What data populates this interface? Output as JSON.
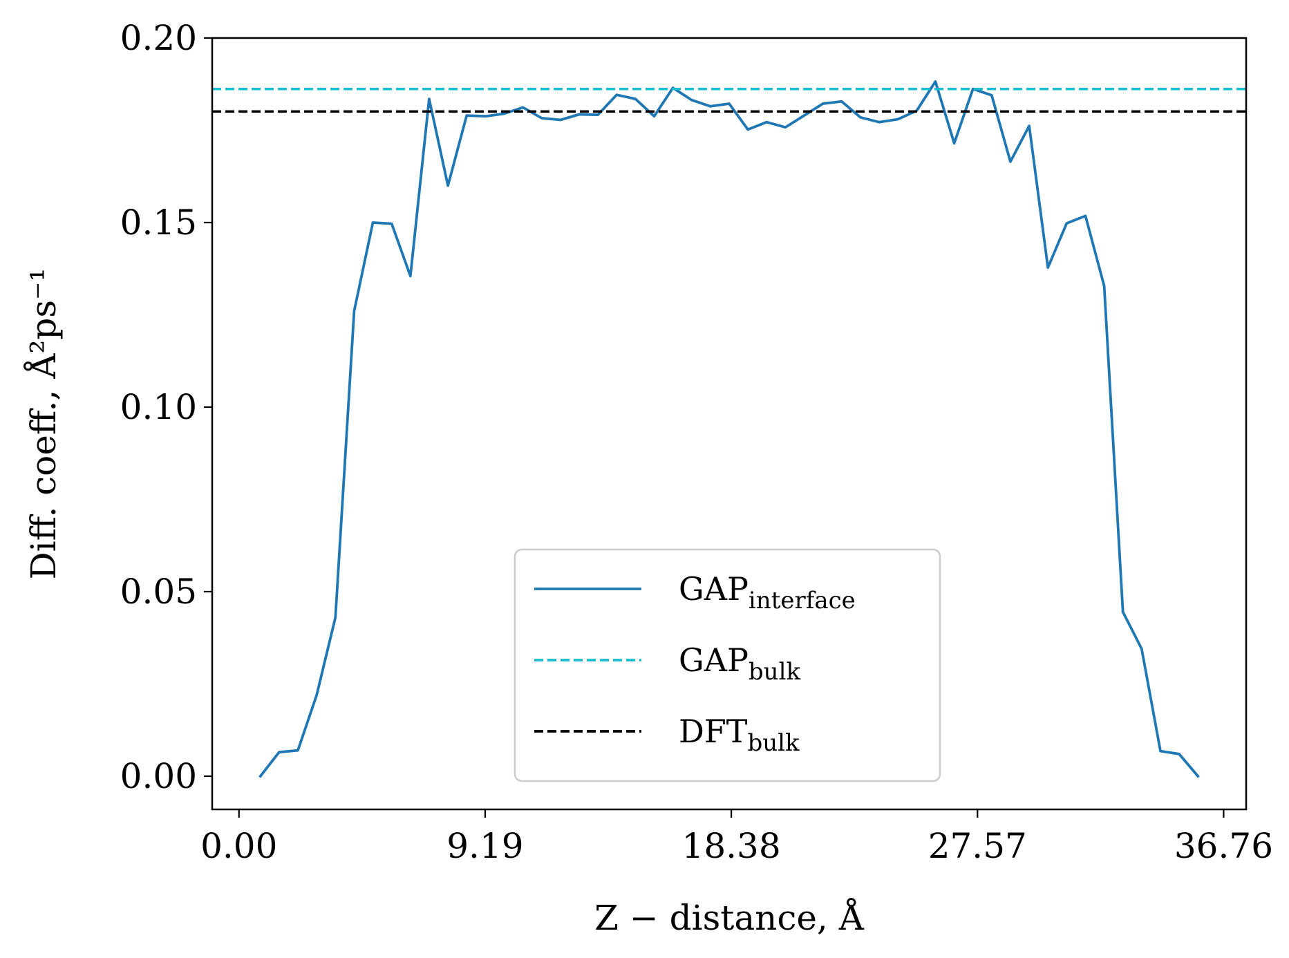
{
  "chart_data": {
    "type": "line",
    "xlabel": "Z − distance, Å",
    "ylabel": "Diff. coeff., Å²ps⁻¹",
    "xlim": [
      -1.0,
      37.6
    ],
    "ylim": [
      -0.009,
      0.2
    ],
    "x_ticks": [
      0.0,
      9.19,
      18.38,
      27.57,
      36.76
    ],
    "x_tick_labels": [
      "0.00",
      "9.19",
      "18.38",
      "27.57",
      "36.76"
    ],
    "y_ticks": [
      0.0,
      0.05,
      0.1,
      0.15,
      0.2
    ],
    "y_tick_labels": [
      "0.00",
      "0.05",
      "0.10",
      "0.15",
      "0.20"
    ],
    "grid": false,
    "legend_position": "lower center",
    "series": [
      {
        "name": "GAP_interface",
        "legend_main": "GAP",
        "legend_sub": "interface",
        "color": "#1f77b4",
        "style": "solid",
        "x": [
          0.8,
          1.5,
          2.2,
          2.9,
          3.6,
          4.3,
          5.0,
          5.7,
          6.4,
          7.1,
          7.8,
          8.5,
          9.2,
          9.9,
          10.6,
          11.3,
          12.0,
          12.7,
          13.4,
          14.1,
          14.8,
          15.5,
          16.2,
          16.9,
          17.6,
          18.3,
          19.0,
          19.7,
          20.4,
          21.1,
          21.8,
          22.5,
          23.2,
          23.9,
          24.6,
          25.3,
          26.0,
          26.7,
          27.4,
          28.1,
          28.8,
          29.5,
          30.2,
          30.9,
          31.6,
          32.3,
          33.0,
          33.7,
          34.4,
          35.1,
          35.8
        ],
        "y": [
          0.0,
          0.0065,
          0.007,
          0.022,
          0.043,
          0.126,
          0.15,
          0.1497,
          0.1355,
          0.1835,
          0.16,
          0.179,
          0.1788,
          0.1795,
          0.1812,
          0.1783,
          0.1778,
          0.1793,
          0.1792,
          0.1846,
          0.1835,
          0.1788,
          0.1865,
          0.1832,
          0.1815,
          0.1822,
          0.1752,
          0.1772,
          0.1758,
          0.179,
          0.1822,
          0.1828,
          0.1785,
          0.1772,
          0.178,
          0.1803,
          0.1882,
          0.1715,
          0.1862,
          0.1845,
          0.1665,
          0.1762,
          0.1378,
          0.1498,
          0.1518,
          0.1328,
          0.0445,
          0.0345,
          0.0068,
          0.006,
          0.0
        ]
      },
      {
        "name": "GAP_bulk",
        "legend_main": "GAP",
        "legend_sub": "bulk",
        "color": "#17becf",
        "style": "dashed",
        "y_const": 0.1862
      },
      {
        "name": "DFT_bulk",
        "legend_main": "DFT",
        "legend_sub": "bulk",
        "color": "#000000",
        "style": "dashed",
        "y_const": 0.1801
      }
    ]
  }
}
